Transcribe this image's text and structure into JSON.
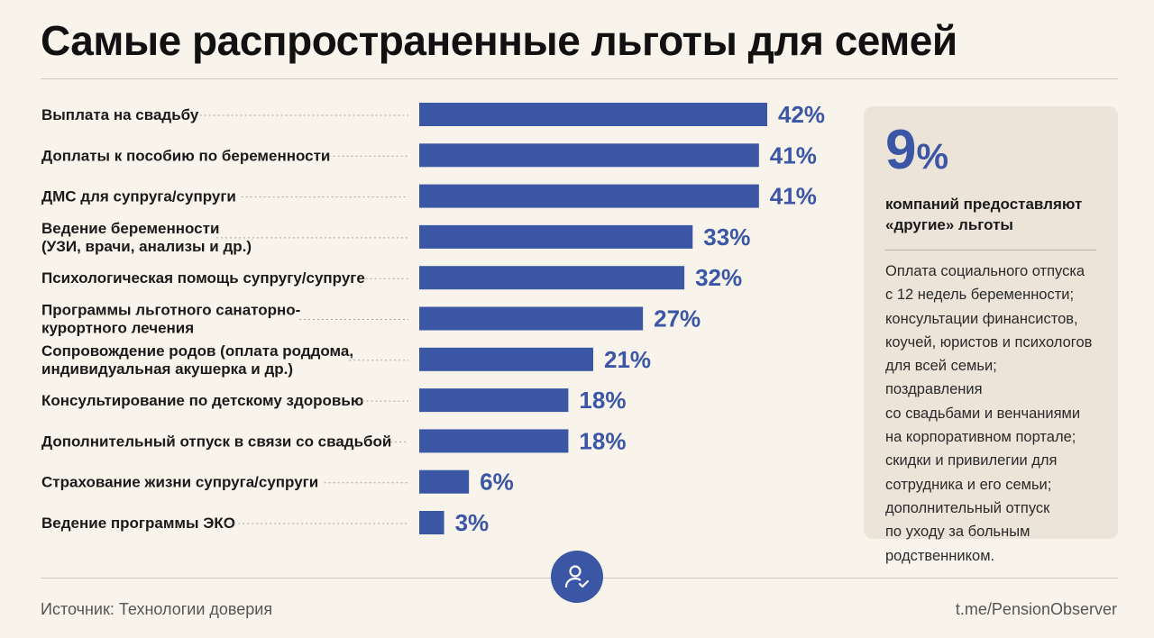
{
  "title": "Самые распространенные льготы для семей",
  "chart_data": {
    "type": "bar",
    "orientation": "horizontal",
    "categories": [
      [
        "Выплата на свадьбу"
      ],
      [
        "Доплаты к пособию по беременности"
      ],
      [
        "ДМС для супруга/супруги"
      ],
      [
        "Ведение беременности",
        "(УЗИ, врачи, анализы и др.)"
      ],
      [
        "Психологическая помощь супругу/супруге"
      ],
      [
        "Программы льготного санаторно-",
        "курортного лечения"
      ],
      [
        "Сопровождение родов (оплата роддома,",
        "индивидуальная акушерка и др.)"
      ],
      [
        "Консультирование по детскому здоровью"
      ],
      [
        "Дополнительный отпуск в связи со свадьбой"
      ],
      [
        "Страхование жизни супруга/супруги"
      ],
      [
        "Ведение программы ЭКО"
      ]
    ],
    "values": [
      42,
      41,
      41,
      33,
      32,
      27,
      21,
      18,
      18,
      6,
      3
    ],
    "value_suffix": "%",
    "bar_color": "#3a56a5",
    "xlim": [
      0,
      42
    ]
  },
  "side": {
    "big_number": "9",
    "big_unit": "%",
    "subtitle": "компаний предоставляют «другие» льготы",
    "text_lines": [
      "Оплата социального отпуска",
      "с 12 недель беременности;",
      "консультации финансистов,",
      "коучей, юристов и психологов",
      "для всей семьи; поздравления",
      "со свадьбами и венчаниями",
      "на корпоративном портале;",
      "скидки и привилегии для",
      "сотрудника и его семьи;",
      "дополнительный отпуск",
      "по уходу за больным",
      "родственником."
    ]
  },
  "footer": {
    "source": "Источник: Технологии доверия",
    "link": "t.me/PensionObserver"
  },
  "icons": {
    "badge": "user-check-icon"
  }
}
